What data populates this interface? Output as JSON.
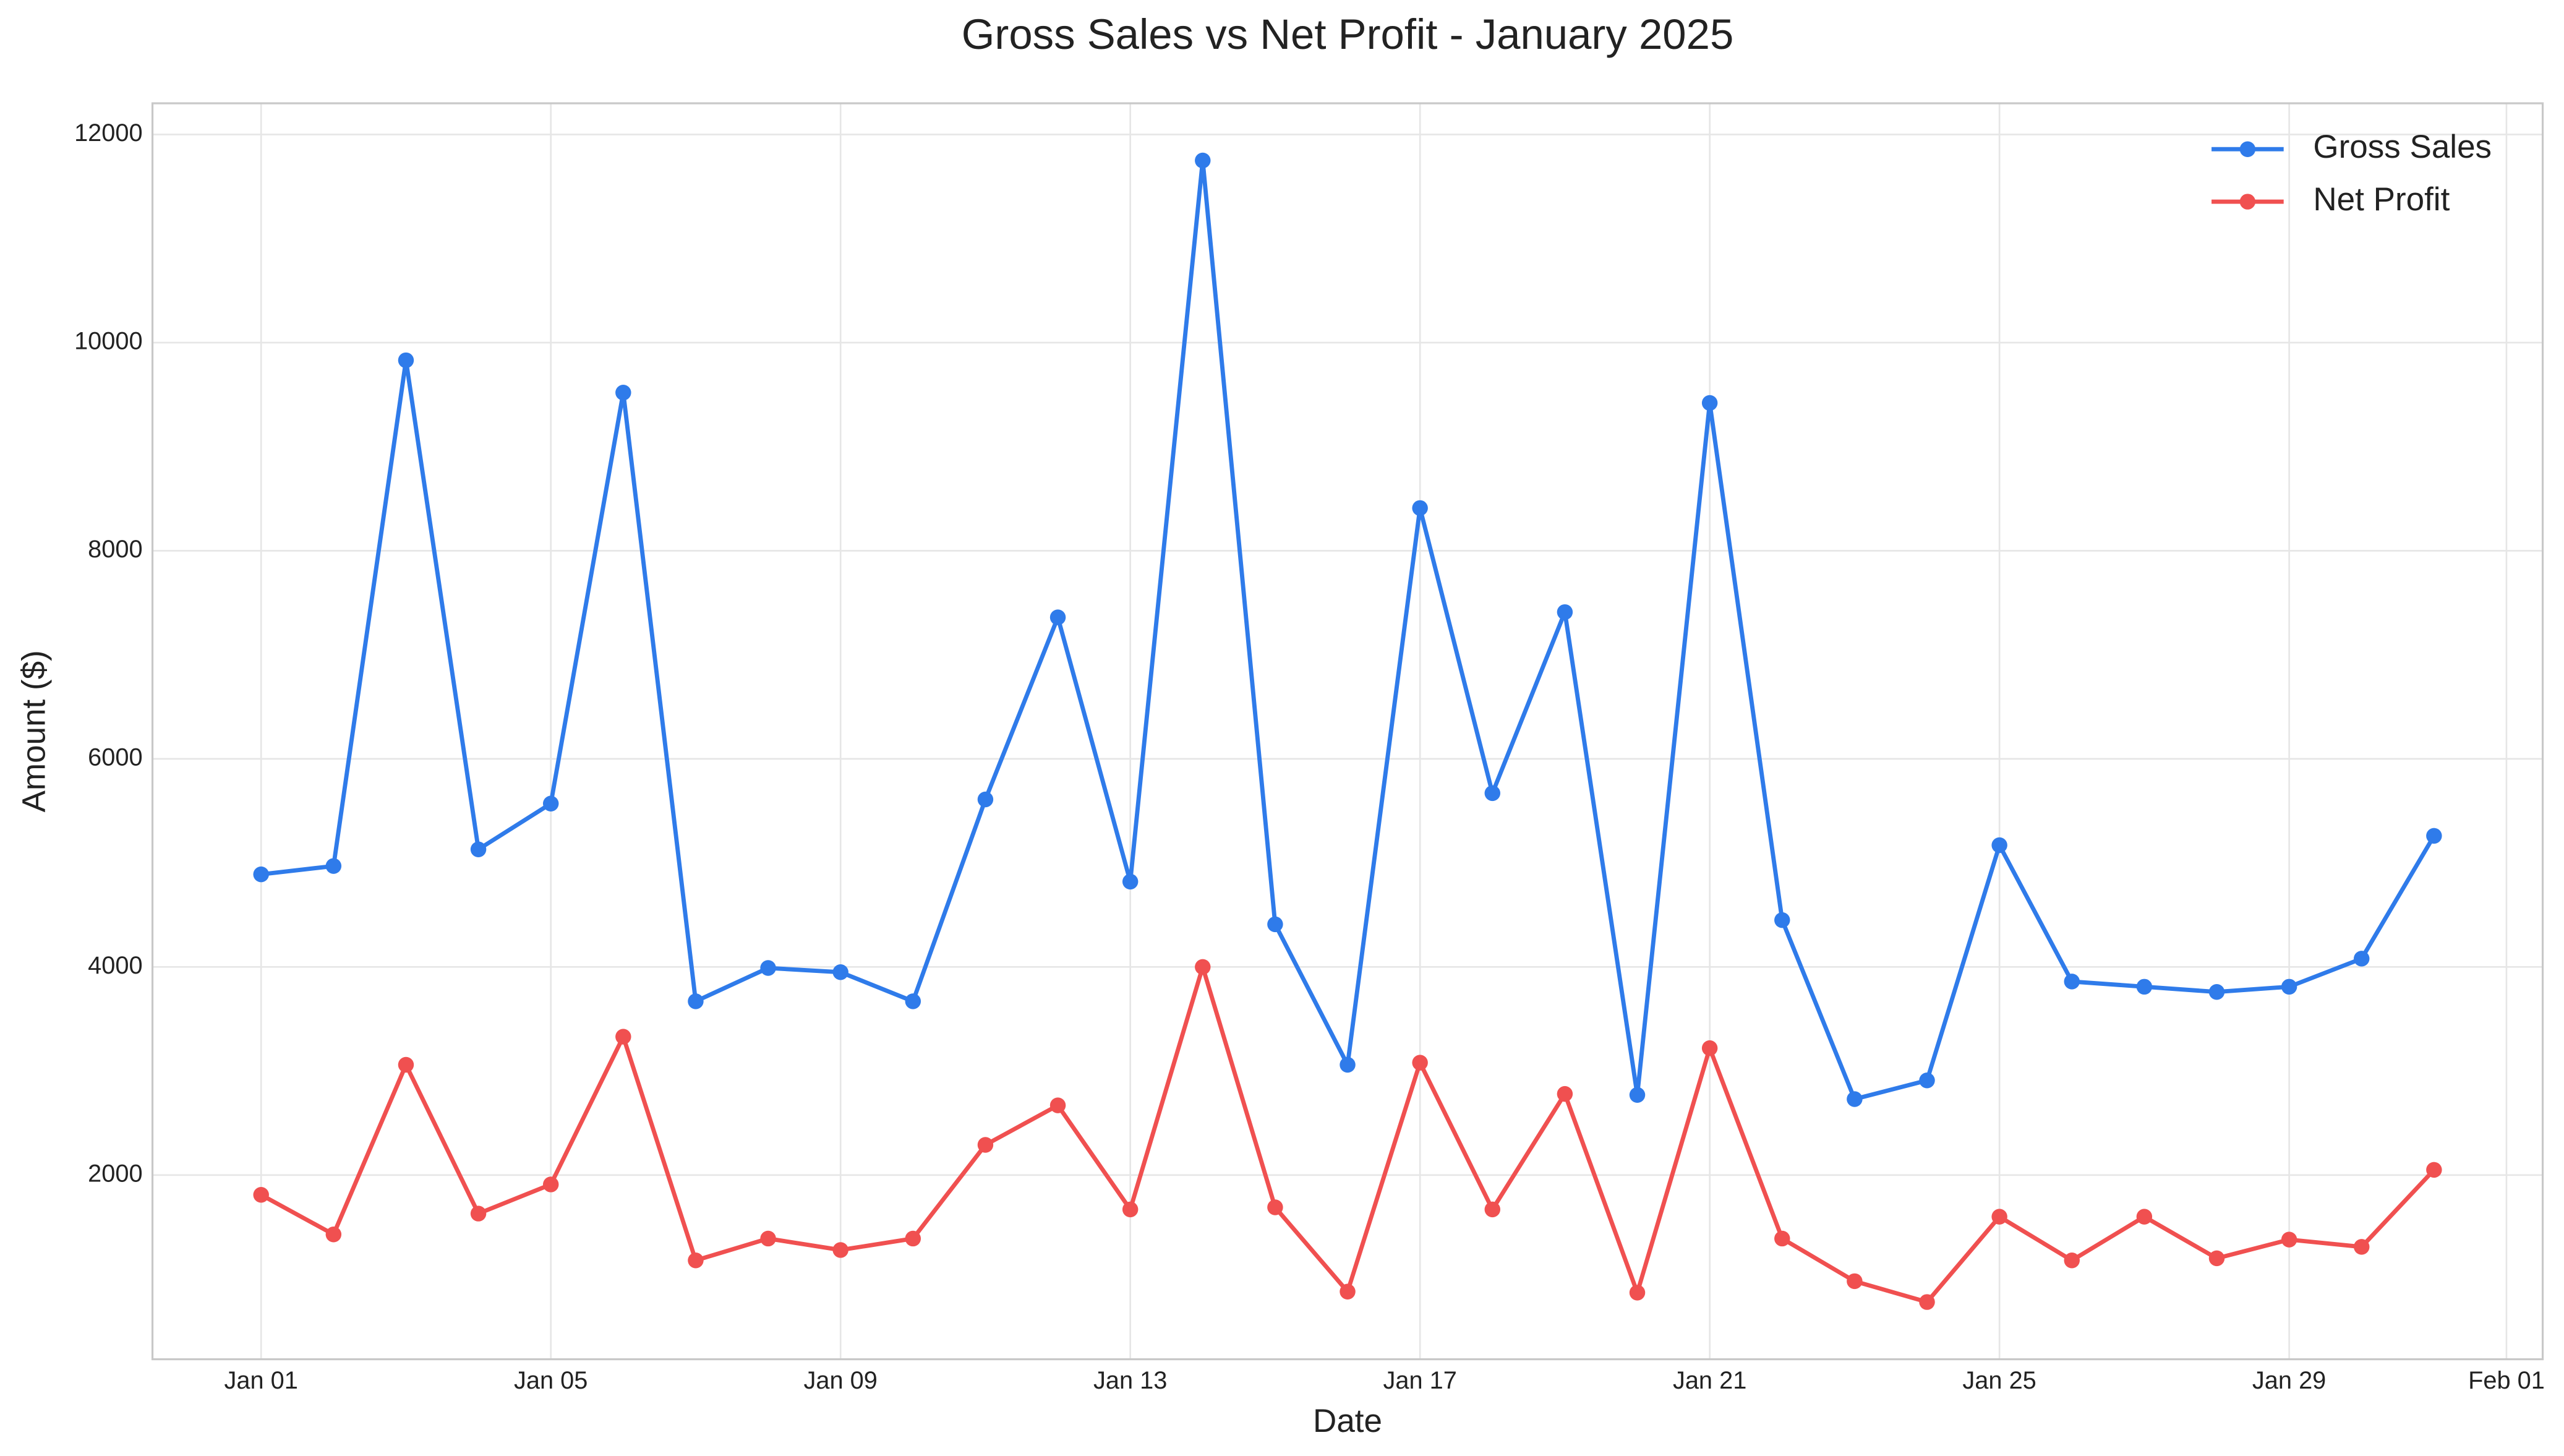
{
  "chart_data": {
    "type": "line",
    "title": "Gross Sales vs Net Profit - January 2025",
    "xlabel": "Date",
    "ylabel": "Amount ($)",
    "x": [
      1,
      2,
      3,
      4,
      5,
      6,
      7,
      8,
      9,
      10,
      11,
      12,
      13,
      14,
      15,
      16,
      17,
      18,
      19,
      20,
      21,
      22,
      23,
      24,
      25,
      26,
      27,
      28,
      29,
      30,
      31
    ],
    "xlim": [
      -0.5,
      32.5
    ],
    "xticks": [
      {
        "value": 1,
        "label": "Jan 01"
      },
      {
        "value": 5,
        "label": "Jan 05"
      },
      {
        "value": 9,
        "label": "Jan 09"
      },
      {
        "value": 13,
        "label": "Jan 13"
      },
      {
        "value": 17,
        "label": "Jan 17"
      },
      {
        "value": 21,
        "label": "Jan 21"
      },
      {
        "value": 25,
        "label": "Jan 25"
      },
      {
        "value": 29,
        "label": "Jan 29"
      },
      {
        "value": 32,
        "label": "Feb 01"
      }
    ],
    "ylim": [
      230,
      12300
    ],
    "yticks": [
      2000,
      4000,
      6000,
      8000,
      10000,
      12000
    ],
    "grid": true,
    "legend": "upper right",
    "series": [
      {
        "name": "Gross Sales",
        "color": "#2f7bea",
        "values": [
          4890,
          4970,
          9830,
          5130,
          5570,
          9520,
          3670,
          3990,
          3950,
          3670,
          5610,
          7360,
          4820,
          11750,
          4410,
          3060,
          8410,
          5670,
          7410,
          2770,
          9420,
          4450,
          2730,
          2910,
          5170,
          3860,
          3810,
          3760,
          3810,
          4080,
          5260
        ]
      },
      {
        "name": "Net Profit",
        "color": "#f05050",
        "values": [
          1810,
          1430,
          3060,
          1630,
          1910,
          3330,
          1180,
          1390,
          1280,
          1390,
          2290,
          2670,
          1670,
          4000,
          1690,
          880,
          3080,
          1670,
          2780,
          870,
          3220,
          1390,
          980,
          780,
          1600,
          1180,
          1600,
          1200,
          1380,
          1310,
          2050
        ]
      }
    ]
  }
}
